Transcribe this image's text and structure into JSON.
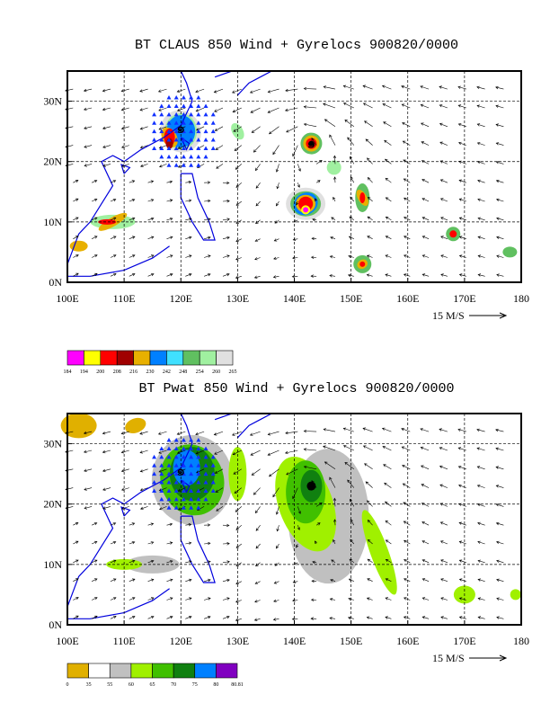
{
  "panels": [
    {
      "title": "BT CLAUS 850 Wind + Gyrelocs 900820/0000",
      "lon_labels": [
        "100E",
        "110E",
        "120E",
        "130E",
        "140E",
        "150E",
        "160E",
        "170E",
        "180"
      ],
      "lat_labels": [
        "0N",
        "10N",
        "20N",
        "30N"
      ],
      "vector_ref": "15 M/S",
      "colorbar": {
        "colors": [
          "#ff00ff",
          "#ffff00",
          "#ff0000",
          "#a00000",
          "#e8b000",
          "#0080ff",
          "#40e0ff",
          "#60c060",
          "#a0f0a0",
          "#e0e0e0"
        ],
        "labels": [
          "184",
          "194",
          "200",
          "208",
          "216",
          "230",
          "242",
          "248",
          "254",
          "260",
          "265"
        ]
      }
    },
    {
      "title": "BT Pwat 850 Wind + Gyrelocs 900820/0000",
      "lon_labels": [
        "100E",
        "110E",
        "120E",
        "130E",
        "140E",
        "150E",
        "160E",
        "170E",
        "180"
      ],
      "lat_labels": [
        "0N",
        "10N",
        "20N",
        "30N"
      ],
      "vector_ref": "15 M/S",
      "colorbar": {
        "colors": [
          "#e0b000",
          "#ffffff",
          "#c0c0c0",
          "#a0f000",
          "#40c000",
          "#108010",
          "#0080ff",
          "#8000c0"
        ],
        "labels": [
          "0",
          "35",
          "55",
          "60",
          "65",
          "70",
          "75",
          "80",
          "80.81"
        ]
      }
    }
  ]
}
